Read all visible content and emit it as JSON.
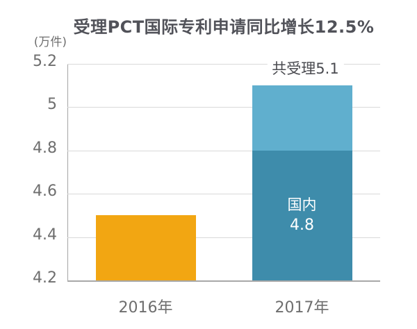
{
  "chart_data": {
    "type": "bar",
    "stacked": true,
    "title": "受理PCT国际专利申请同比增长12.5%",
    "unit": "(万件)",
    "growth_rate": "12.5%",
    "ylim": [
      4.2,
      5.2
    ],
    "grid": true,
    "legend": false,
    "yticks": [
      {
        "value": 5.2,
        "label": "5.2"
      },
      {
        "value": 5.0,
        "label": "5"
      },
      {
        "value": 4.8,
        "label": "4.8"
      },
      {
        "value": 4.6,
        "label": "4.6"
      },
      {
        "value": 4.4,
        "label": "4.4"
      },
      {
        "value": 4.2,
        "label": "4.2"
      }
    ],
    "categories": [
      "2016年",
      "2017年"
    ],
    "bars": [
      {
        "category": "2016年",
        "total": 4.5,
        "segments": [
          {
            "to": 4.5,
            "color": "#F2A612"
          }
        ]
      },
      {
        "category": "2017年",
        "total": 5.1,
        "total_label": "共受理5.1",
        "segments": [
          {
            "to": 4.8,
            "color": "#3E8CAB",
            "label": "国内",
            "value_label": "4.8"
          },
          {
            "to": 5.1,
            "color": "#60AFCE"
          }
        ]
      }
    ]
  },
  "colors": {
    "background": "#FFFFFF",
    "title": "#515259",
    "unit_label": "#6F6F6F",
    "axis_tick_label": "#6E6E6E",
    "top_label": "#4A4B50",
    "gridline": "#D9D9D9",
    "axis_line": "#A8A8A8",
    "bar_2016": "#F2A612",
    "bar_2017_domestic": "#3E8CAB",
    "bar_2017_upper": "#60AFCE",
    "bar_value_text": "#FFFFFF"
  }
}
